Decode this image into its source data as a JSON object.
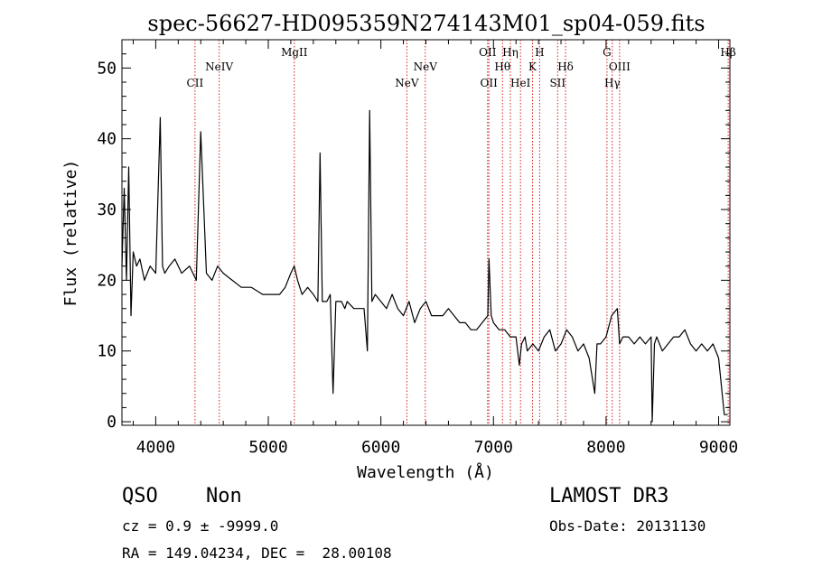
{
  "chart_data": {
    "type": "line",
    "title": "spec-56627-HD095359N274143M01_sp04-059.fits",
    "xlabel": "Wavelength (Å)",
    "ylabel": "Flux (relative)",
    "xlim": [
      3700,
      9100
    ],
    "ylim": [
      -0.5,
      54
    ],
    "xticks": [
      4000,
      5000,
      6000,
      7000,
      8000,
      9000
    ],
    "yticks": [
      0,
      10,
      20,
      30,
      40,
      50
    ],
    "grid": false,
    "series": [
      {
        "name": "spectrum",
        "color": "#000000",
        "x": [
          3700,
          3720,
          3740,
          3760,
          3780,
          3800,
          3830,
          3860,
          3900,
          3950,
          4000,
          4040,
          4060,
          4080,
          4120,
          4170,
          4230,
          4300,
          4360,
          4400,
          4450,
          4500,
          4550,
          4600,
          4680,
          4760,
          4850,
          4950,
          5050,
          5100,
          5150,
          5200,
          5230,
          5260,
          5300,
          5350,
          5400,
          5440,
          5460,
          5480,
          5520,
          5550,
          5575,
          5600,
          5650,
          5680,
          5700,
          5760,
          5800,
          5850,
          5880,
          5900,
          5920,
          5950,
          6000,
          6050,
          6100,
          6150,
          6200,
          6250,
          6300,
          6350,
          6400,
          6450,
          6500,
          6550,
          6600,
          6650,
          6700,
          6750,
          6800,
          6850,
          6900,
          6950,
          6960,
          6980,
          7000,
          7050,
          7100,
          7150,
          7200,
          7230,
          7250,
          7280,
          7300,
          7350,
          7400,
          7450,
          7500,
          7550,
          7600,
          7650,
          7700,
          7750,
          7800,
          7850,
          7900,
          7920,
          7950,
          8000,
          8050,
          8100,
          8120,
          8150,
          8200,
          8250,
          8300,
          8350,
          8400,
          8410,
          8430,
          8450,
          8500,
          8550,
          8600,
          8650,
          8700,
          8750,
          8800,
          8850,
          8900,
          8950,
          9000,
          9050,
          9080
        ],
        "values": [
          22,
          33,
          20,
          36,
          15,
          24,
          22,
          23,
          20,
          22,
          21,
          43,
          22,
          21,
          22,
          23,
          21,
          22,
          20,
          41,
          21,
          20,
          22,
          21,
          20,
          19,
          19,
          18,
          18,
          18,
          19,
          21,
          22,
          20,
          18,
          19,
          18,
          17,
          38,
          17,
          17,
          18,
          4,
          17,
          17,
          16,
          17,
          16,
          16,
          16,
          10,
          44,
          17,
          18,
          17,
          16,
          18,
          16,
          15,
          17,
          14,
          16,
          17,
          15,
          15,
          15,
          16,
          15,
          14,
          14,
          13,
          13,
          14,
          15,
          23,
          15,
          14,
          13,
          13,
          12,
          12,
          8,
          11,
          12,
          10,
          11,
          10,
          12,
          13,
          10,
          11,
          13,
          12,
          10,
          11,
          9,
          4,
          11,
          11,
          12,
          15,
          16,
          11,
          12,
          12,
          11,
          12,
          11,
          12,
          0,
          11,
          12,
          10,
          11,
          12,
          12,
          13,
          11,
          10,
          11,
          10,
          11,
          9,
          1,
          1
        ]
      }
    ],
    "lines": [
      {
        "label": "CII",
        "wavelength": 4349,
        "row": 3
      },
      {
        "label": "NeIV",
        "wavelength": 4564,
        "row": 2
      },
      {
        "label": "MgII",
        "wavelength": 5231,
        "row": 1
      },
      {
        "label": "NeV",
        "wavelength": 6231,
        "row": 3
      },
      {
        "label": "NeV",
        "wavelength": 6394,
        "row": 2
      },
      {
        "label": "OII",
        "wavelength": 6948,
        "row": 1
      },
      {
        "label": "OII",
        "wavelength": 6959,
        "row": 3
      },
      {
        "label": "Hθ",
        "wavelength": 7080,
        "row": 2
      },
      {
        "label": "Hη",
        "wavelength": 7150,
        "row": 1
      },
      {
        "label": "HeI",
        "wavelength": 7240,
        "row": 3
      },
      {
        "label": "K",
        "wavelength": 7347,
        "row": 2
      },
      {
        "label": "H",
        "wavelength": 7410,
        "row": 1
      },
      {
        "label": "SII",
        "wavelength": 7570,
        "row": 3
      },
      {
        "label": "Hδ",
        "wavelength": 7640,
        "row": 2
      },
      {
        "label": "G",
        "wavelength": 8008,
        "row": 1
      },
      {
        "label": "Hγ",
        "wavelength": 8055,
        "row": 3
      },
      {
        "label": "OIII",
        "wavelength": 8120,
        "row": 2
      },
      {
        "label": "Hβ",
        "wavelength": 9085,
        "row": 1
      }
    ],
    "line_color": "#d42020"
  },
  "info": {
    "class": "QSO",
    "subclass": "Non",
    "survey": "LAMOST DR3",
    "cz": "cz = 0.9 ± -9999.0",
    "obs_date": "Obs-Date: 20131130",
    "coords": "RA = 149.04234, DEC =  28.00108"
  }
}
